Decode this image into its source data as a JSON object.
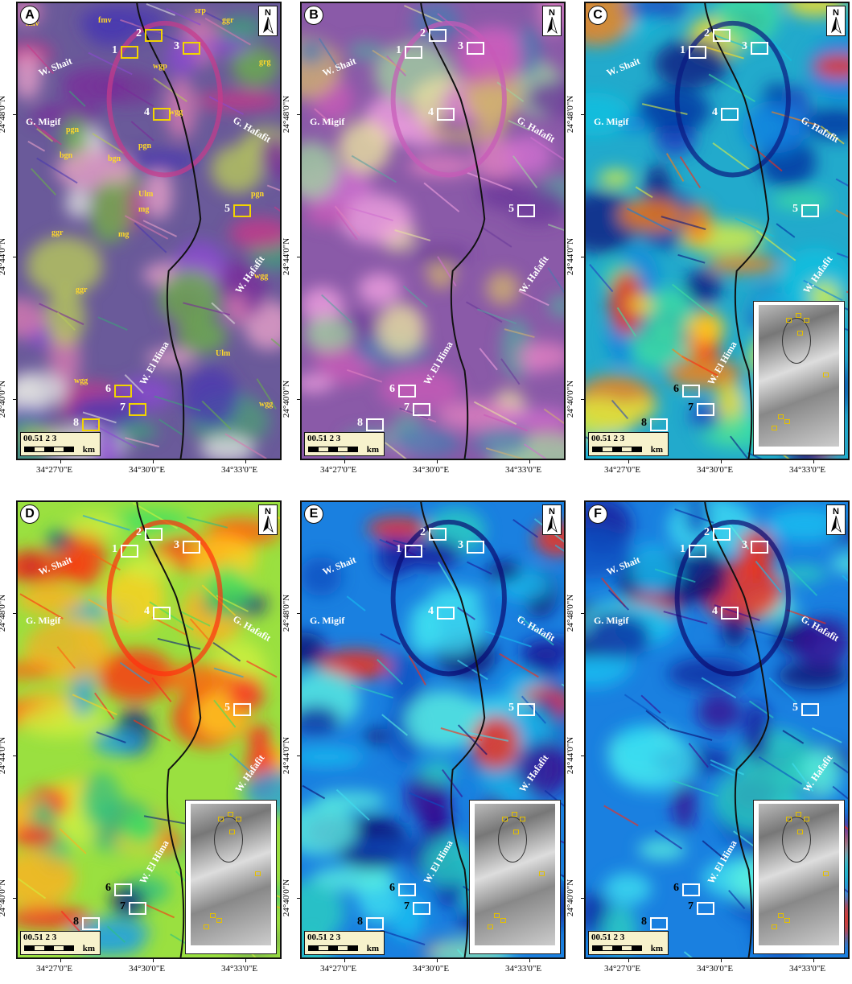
{
  "panels": [
    {
      "id": "A",
      "style": "rgb1",
      "box": "yellow",
      "labels": {
        "shait": "W. Shait",
        "migif": "G. Migif",
        "hafafit": "G. Hafafit",
        "hafafit_w": "W. Hafafit",
        "hima": "W. El Hima"
      }
    },
    {
      "id": "B",
      "style": "rgb2",
      "box": "white",
      "labels": {
        "shait": "W. Shait",
        "migif": "G. Migif",
        "hafafit": "G. Hafafit",
        "hafafit_w": "W. Hafafit",
        "hima": "W. El Hima"
      }
    },
    {
      "id": "C",
      "style": "jet",
      "box": "white",
      "labels": {
        "shait": "W. Shait",
        "migif": "G. Migif",
        "hafafit": "G. Hafafit",
        "hafafit_w": "W. Hafafit",
        "hima": "W. El Hima"
      }
    },
    {
      "id": "D",
      "style": "jet2",
      "box": "white",
      "labels": {
        "shait": "W. Shait",
        "migif": "G. Migif",
        "hafafit": "G. Hafafit",
        "hafafit_w": "W. Hafafit",
        "hima": "W. El Hima"
      }
    },
    {
      "id": "E",
      "style": "blue",
      "box": "white",
      "labels": {
        "shait": "W. Shait",
        "migif": "G. Migif",
        "hafafit": "G. Hafafit",
        "hafafit_w": "W. Hafafit",
        "hima": "W. El Hima"
      }
    },
    {
      "id": "F",
      "style": "blue",
      "box": "white",
      "labels": {
        "shait": "W. Shait",
        "migif": "G. Migif",
        "hafafit": "G. Hafafit",
        "hafafit_w": "W. Hafafit",
        "hima": "W. El Hima"
      }
    }
  ],
  "sites": [
    "1",
    "2",
    "3",
    "4",
    "5",
    "6",
    "7",
    "8"
  ],
  "units_A": [
    "fmv",
    "fmv",
    "srp",
    "ggr",
    "grg",
    "wgp",
    "wgg",
    "pgn",
    "bgn",
    "bgn",
    "Ulm",
    "pgn",
    "ggr",
    "mg",
    "mg",
    "ggr",
    "wgg",
    "Ulm",
    "wgg",
    "wgg",
    "Ulm",
    "pgn"
  ],
  "north": "N",
  "scale": {
    "nums": "00.51    2      3",
    "unit": "km"
  },
  "lat_labels": [
    "24°48'0\"N",
    "24°44'0\"N",
    "24°40'0\"N"
  ],
  "lon_labels": [
    "34°27'0\"E",
    "34°30'0\"E",
    "34°33'0\"E"
  ],
  "colors": {
    "yellow_box": "#f2d400",
    "white_box": "#ffffff",
    "route": "#111111"
  }
}
